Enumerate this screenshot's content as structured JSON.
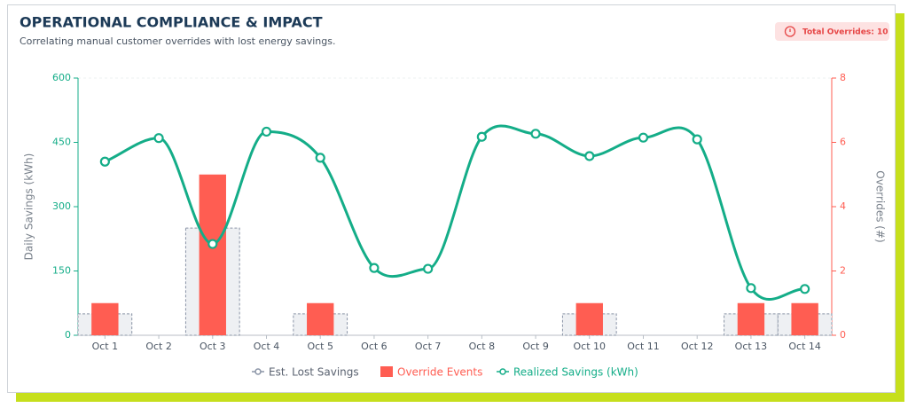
{
  "header": {
    "title": "OPERATIONAL COMPLIANCE & IMPACT",
    "subtitle": "Correlating manual customer overrides with lost energy savings.",
    "badge": "Total Overrides: 10"
  },
  "chart_data": {
    "type": "combo",
    "categories": [
      "Oct 1",
      "Oct 2",
      "Oct 3",
      "Oct 4",
      "Oct 5",
      "Oct 6",
      "Oct 7",
      "Oct 8",
      "Oct 9",
      "Oct 10",
      "Oct 11",
      "Oct 12",
      "Oct 13",
      "Oct 14"
    ],
    "series": [
      {
        "name": "Est. Lost Savings",
        "type": "bar",
        "color": "#eef0f3",
        "border_color": "#8a94a6",
        "values": [
          50,
          0,
          250,
          0,
          50,
          0,
          0,
          0,
          0,
          50,
          0,
          0,
          50,
          50
        ]
      },
      {
        "name": "Override Events",
        "type": "bar",
        "axis": "y2",
        "color": "#ff5d52",
        "values": [
          1,
          0,
          5,
          0,
          1,
          0,
          0,
          0,
          0,
          1,
          0,
          0,
          1,
          1
        ]
      },
      {
        "name": "Realized Savings (kWh)",
        "type": "line",
        "color": "#14ad88",
        "values": [
          405,
          460,
          213,
          475,
          414,
          157,
          155,
          463,
          470,
          418,
          461,
          457,
          110,
          108
        ]
      }
    ],
    "ylabel": "Daily Savings (kWh)",
    "y2label": "Overrides (#)",
    "ylim": [
      0,
      600
    ],
    "yticks": [
      0,
      150,
      300,
      450,
      600
    ],
    "y2lim": [
      0,
      8
    ],
    "y2ticks": [
      0,
      2,
      4,
      6,
      8
    ],
    "legend": "bottom"
  }
}
